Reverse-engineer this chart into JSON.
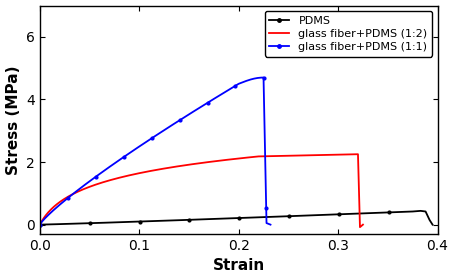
{
  "title": "",
  "xlabel": "Strain",
  "ylabel": "Stress (MPa)",
  "xlim": [
    0.0,
    0.4
  ],
  "ylim": [
    -0.3,
    7.0
  ],
  "xticks": [
    0.0,
    0.1,
    0.2,
    0.3,
    0.4
  ],
  "yticks": [
    0,
    2,
    4,
    6
  ],
  "legend_labels": [
    "PDMS",
    "glass fiber+PDMS (1:2)",
    "glass fiber+PDMS (1:1)"
  ],
  "colors": [
    "black",
    "red",
    "blue"
  ],
  "figsize": [
    4.54,
    2.79
  ],
  "dpi": 100
}
